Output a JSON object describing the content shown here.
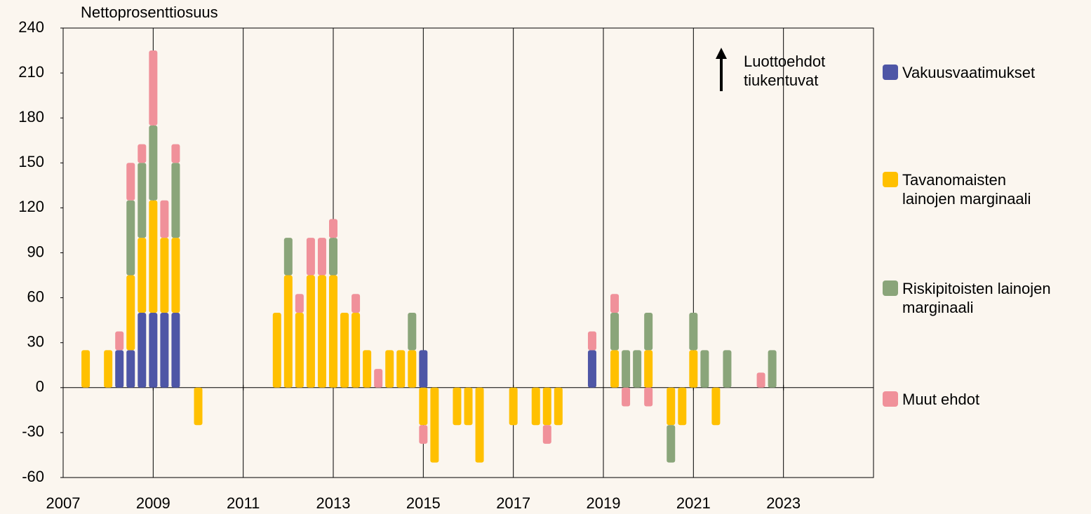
{
  "chart_data": {
    "type": "stacked-bar",
    "y_label": "Nettoprosenttiosuus",
    "annotation": "Luottoehdot tiukentuvat",
    "x": [
      2007.5,
      2008.0,
      2008.25,
      2008.5,
      2008.75,
      2009.0,
      2009.25,
      2009.5,
      2010.0,
      2011.75,
      2012.0,
      2012.25,
      2012.5,
      2012.75,
      2013.0,
      2013.25,
      2013.5,
      2013.75,
      2014.0,
      2014.25,
      2014.5,
      2014.75,
      2015.0,
      2015.25,
      2015.75,
      2016.0,
      2016.25,
      2017.0,
      2017.5,
      2017.75,
      2018.0,
      2018.75,
      2019.25,
      2019.5,
      2019.75,
      2020.0,
      2020.5,
      2020.75,
      2021.0,
      2021.25,
      2021.5,
      2021.75,
      2022.5,
      2022.75
    ],
    "series": [
      {
        "name": "Vakuusvaatimukset",
        "color": "#4e56a6",
        "values": [
          null,
          null,
          25,
          25,
          50,
          50,
          50,
          50,
          null,
          null,
          null,
          null,
          null,
          null,
          null,
          null,
          null,
          null,
          null,
          null,
          null,
          null,
          25,
          null,
          null,
          null,
          null,
          null,
          null,
          null,
          null,
          25,
          null,
          null,
          null,
          null,
          null,
          null,
          null,
          null,
          null,
          null,
          null,
          null
        ]
      },
      {
        "name": "Tavanomaisten lainojen marginaali",
        "color": "#ffc000",
        "values": [
          25,
          25,
          null,
          50,
          50,
          75,
          50,
          50,
          -25,
          50,
          75,
          50,
          75,
          75,
          75,
          50,
          50,
          25,
          null,
          25,
          25,
          25,
          -25,
          -50,
          -25,
          -25,
          -50,
          -25,
          -25,
          -25,
          -25,
          null,
          25,
          null,
          null,
          25,
          -25,
          -25,
          25,
          null,
          -25,
          null,
          null,
          null
        ]
      },
      {
        "name": "Riskipitoisten lainojen marginaali",
        "color": "#8aa57a",
        "values": [
          null,
          null,
          null,
          50,
          50,
          50,
          null,
          50,
          null,
          null,
          25,
          null,
          null,
          null,
          25,
          null,
          null,
          null,
          null,
          null,
          null,
          25,
          null,
          null,
          null,
          null,
          null,
          null,
          null,
          null,
          null,
          null,
          25,
          25,
          25,
          25,
          -25,
          null,
          25,
          25,
          null,
          25,
          null,
          25
        ]
      },
      {
        "name": "Muut ehdot",
        "color": "#f0919a",
        "values": [
          null,
          null,
          12.5,
          25,
          12.5,
          50,
          25,
          12.5,
          null,
          null,
          null,
          12.5,
          25,
          25,
          12.5,
          null,
          12.5,
          null,
          12.5,
          null,
          null,
          null,
          -12.5,
          null,
          null,
          null,
          null,
          null,
          null,
          -12.5,
          null,
          12.5,
          12.5,
          -12.5,
          null,
          -12.5,
          null,
          null,
          null,
          null,
          null,
          null,
          10,
          null
        ]
      }
    ],
    "xlim": [
      2007,
      2025
    ],
    "xticks": [
      2007,
      2009,
      2011,
      2013,
      2015,
      2017,
      2019,
      2021,
      2023
    ],
    "ylim": [
      -60,
      240
    ],
    "yticks": [
      -60,
      -30,
      0,
      30,
      60,
      90,
      120,
      150,
      180,
      210,
      240
    ],
    "grid": "x"
  }
}
